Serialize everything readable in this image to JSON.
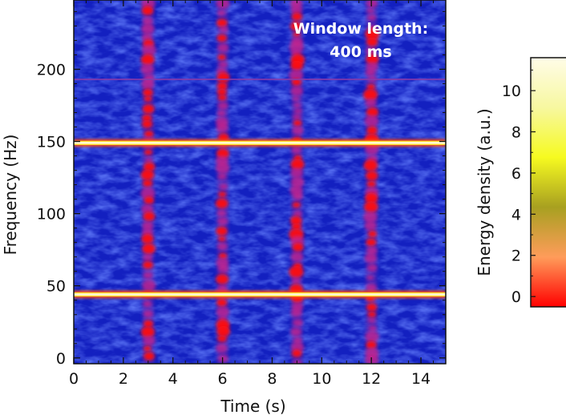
{
  "chart_data": {
    "type": "heatmap",
    "title": "",
    "xlabel": "Time (s)",
    "ylabel": "Frequency (Hz)",
    "xlim": [
      0,
      15
    ],
    "ylim": [
      -4,
      248
    ],
    "xticks": [
      0,
      2,
      4,
      6,
      8,
      10,
      12,
      14
    ],
    "yticks": [
      0,
      50,
      100,
      150,
      200
    ],
    "grid": false,
    "annotation": [
      "Window length:",
      "400 ms"
    ],
    "horizontal_lines_hz": [
      44,
      149
    ],
    "faint_line_hz": 193,
    "pulse_times_s": [
      3,
      6,
      9,
      12
    ],
    "colorbar": {
      "label": "Energy density (a.u.)",
      "ticks": [
        0,
        2,
        4,
        6,
        8,
        10
      ],
      "range": [
        -0.5,
        11.6
      ],
      "colors": [
        "#ff0000",
        "#ff9c5a",
        "#a8a020",
        "#f6fa20",
        "#f7f8a0",
        "#fffce8"
      ]
    }
  }
}
